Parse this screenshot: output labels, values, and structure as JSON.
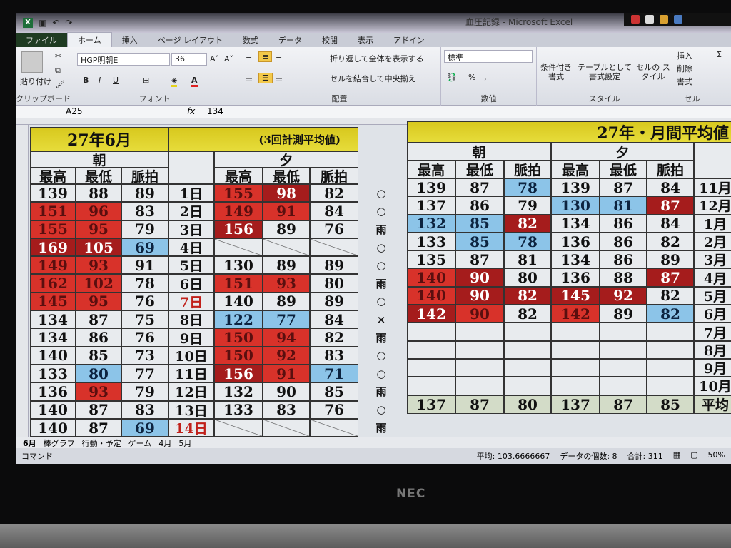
{
  "window": {
    "title": "血圧記録 - Microsoft Excel"
  },
  "ribbon": {
    "tabs": [
      "ファイル",
      "ホーム",
      "挿入",
      "ページ レイアウト",
      "数式",
      "データ",
      "校閲",
      "表示",
      "アドイン"
    ],
    "active_tab": "ホーム",
    "clipboard": {
      "paste": "貼り付け",
      "label": "クリップボード"
    },
    "font": {
      "name": "HGP明朝E",
      "size": "36",
      "label": "フォント",
      "bold": "B",
      "italic": "I",
      "underline": "U"
    },
    "alignment": {
      "wrap": "折り返して全体を表示する",
      "merge": "セルを結合して中央揃え",
      "label": "配置"
    },
    "number": {
      "format": "標準",
      "percent": "%",
      "comma": ",",
      "label": "数値"
    },
    "styles": {
      "conditional": "条件付き 書式",
      "table": "テーブルとして 書式設定",
      "cell": "セルの スタイル",
      "label": "スタイル"
    },
    "cells": {
      "insert": "挿入",
      "delete": "削除",
      "format": "書式",
      "label": "セル"
    }
  },
  "formula_bar": {
    "name_box": "A25",
    "fx": "fx",
    "value": "134"
  },
  "left_table": {
    "title": "27年6月",
    "note": "(3回計測平均値)",
    "morning": "朝",
    "evening": "夕",
    "columns": [
      "最高",
      "最低",
      "脈拍"
    ],
    "rows": [
      {
        "day": "1日",
        "m": [
          [
            "139",
            ""
          ],
          [
            "88",
            ""
          ],
          [
            "89",
            ""
          ]
        ],
        "e": [
          [
            "155",
            "r"
          ],
          [
            "98",
            "dr"
          ],
          [
            "82",
            ""
          ]
        ],
        "weather": "○"
      },
      {
        "day": "2日",
        "m": [
          [
            "151",
            "r"
          ],
          [
            "96",
            "r"
          ],
          [
            "83",
            ""
          ]
        ],
        "e": [
          [
            "149",
            "r"
          ],
          [
            "91",
            "r"
          ],
          [
            "84",
            ""
          ]
        ],
        "weather": "○"
      },
      {
        "day": "3日",
        "m": [
          [
            "155",
            "r"
          ],
          [
            "95",
            "r"
          ],
          [
            "79",
            ""
          ]
        ],
        "e": [
          [
            "156",
            "dr"
          ],
          [
            "89",
            ""
          ],
          [
            "76",
            ""
          ]
        ],
        "weather": "雨"
      },
      {
        "day": "4日",
        "m": [
          [
            "169",
            "dr"
          ],
          [
            "105",
            "dr"
          ],
          [
            "69",
            "b"
          ]
        ],
        "e": [
          [
            "",
            "diag"
          ],
          [
            "",
            "diag"
          ],
          [
            "",
            "diag"
          ]
        ],
        "weather": "○"
      },
      {
        "day": "5日",
        "m": [
          [
            "149",
            "r"
          ],
          [
            "93",
            "r"
          ],
          [
            "91",
            ""
          ]
        ],
        "e": [
          [
            "130",
            ""
          ],
          [
            "89",
            ""
          ],
          [
            "89",
            ""
          ]
        ],
        "weather": "○"
      },
      {
        "day": "6日",
        "m": [
          [
            "162",
            "r"
          ],
          [
            "102",
            "r"
          ],
          [
            "78",
            ""
          ]
        ],
        "e": [
          [
            "151",
            "r"
          ],
          [
            "93",
            "r"
          ],
          [
            "80",
            ""
          ]
        ],
        "weather": "雨"
      },
      {
        "day": "7日",
        "day_red": true,
        "m": [
          [
            "145",
            "r"
          ],
          [
            "95",
            "r"
          ],
          [
            "76",
            ""
          ]
        ],
        "e": [
          [
            "140",
            ""
          ],
          [
            "89",
            ""
          ],
          [
            "89",
            ""
          ]
        ],
        "weather": "○"
      },
      {
        "day": "8日",
        "m": [
          [
            "134",
            ""
          ],
          [
            "87",
            ""
          ],
          [
            "75",
            ""
          ]
        ],
        "e": [
          [
            "122",
            "b"
          ],
          [
            "77",
            "b"
          ],
          [
            "84",
            ""
          ]
        ],
        "weather": "×"
      },
      {
        "day": "9日",
        "m": [
          [
            "134",
            ""
          ],
          [
            "86",
            ""
          ],
          [
            "76",
            ""
          ]
        ],
        "e": [
          [
            "150",
            "r"
          ],
          [
            "94",
            "r"
          ],
          [
            "82",
            ""
          ]
        ],
        "weather": "雨"
      },
      {
        "day": "10日",
        "m": [
          [
            "140",
            ""
          ],
          [
            "85",
            ""
          ],
          [
            "73",
            ""
          ]
        ],
        "e": [
          [
            "150",
            "r"
          ],
          [
            "92",
            "r"
          ],
          [
            "83",
            ""
          ]
        ],
        "weather": "○"
      },
      {
        "day": "11日",
        "m": [
          [
            "133",
            ""
          ],
          [
            "80",
            "b"
          ],
          [
            "77",
            ""
          ]
        ],
        "e": [
          [
            "156",
            "dr"
          ],
          [
            "91",
            "r"
          ],
          [
            "71",
            "b"
          ]
        ],
        "weather": "○"
      },
      {
        "day": "12日",
        "m": [
          [
            "136",
            ""
          ],
          [
            "93",
            "r"
          ],
          [
            "79",
            ""
          ]
        ],
        "e": [
          [
            "132",
            ""
          ],
          [
            "90",
            ""
          ],
          [
            "85",
            ""
          ]
        ],
        "weather": "雨"
      },
      {
        "day": "13日",
        "m": [
          [
            "140",
            ""
          ],
          [
            "87",
            ""
          ],
          [
            "83",
            ""
          ]
        ],
        "e": [
          [
            "133",
            ""
          ],
          [
            "83",
            ""
          ],
          [
            "76",
            ""
          ]
        ],
        "weather": "○"
      },
      {
        "day": "14日",
        "day_red": true,
        "m": [
          [
            "140",
            ""
          ],
          [
            "87",
            ""
          ],
          [
            "69",
            "b"
          ]
        ],
        "e": [
          [
            "",
            "diag"
          ],
          [
            "",
            "diag"
          ],
          [
            "",
            "diag"
          ]
        ],
        "weather": "雨"
      }
    ]
  },
  "right_table": {
    "title": "27年・月間平均値",
    "morning": "朝",
    "evening": "夕",
    "columns": [
      "最高",
      "最低",
      "脈拍"
    ],
    "rows": [
      {
        "month": "11月",
        "v": [
          [
            "139",
            ""
          ],
          [
            "87",
            ""
          ],
          [
            "78",
            "b"
          ],
          [
            "139",
            ""
          ],
          [
            "87",
            ""
          ],
          [
            "84",
            ""
          ]
        ]
      },
      {
        "month": "12月",
        "v": [
          [
            "137",
            ""
          ],
          [
            "86",
            ""
          ],
          [
            "79",
            ""
          ],
          [
            "130",
            "b"
          ],
          [
            "81",
            "b"
          ],
          [
            "87",
            "dr"
          ]
        ]
      },
      {
        "month": "1月",
        "v": [
          [
            "132",
            "b"
          ],
          [
            "85",
            "b"
          ],
          [
            "82",
            "dr"
          ],
          [
            "134",
            ""
          ],
          [
            "86",
            ""
          ],
          [
            "84",
            ""
          ]
        ]
      },
      {
        "month": "2月",
        "v": [
          [
            "133",
            ""
          ],
          [
            "85",
            "b"
          ],
          [
            "78",
            "b"
          ],
          [
            "136",
            ""
          ],
          [
            "86",
            ""
          ],
          [
            "82",
            ""
          ]
        ]
      },
      {
        "month": "3月",
        "v": [
          [
            "135",
            ""
          ],
          [
            "87",
            ""
          ],
          [
            "81",
            ""
          ],
          [
            "134",
            ""
          ],
          [
            "86",
            ""
          ],
          [
            "89",
            ""
          ]
        ]
      },
      {
        "month": "4月",
        "v": [
          [
            "140",
            "r"
          ],
          [
            "90",
            "dr"
          ],
          [
            "80",
            ""
          ],
          [
            "136",
            ""
          ],
          [
            "88",
            ""
          ],
          [
            "87",
            "dr"
          ]
        ]
      },
      {
        "month": "5月",
        "v": [
          [
            "140",
            "r"
          ],
          [
            "90",
            "dr"
          ],
          [
            "82",
            "dr"
          ],
          [
            "145",
            "dr"
          ],
          [
            "92",
            "dr"
          ],
          [
            "82",
            ""
          ]
        ]
      },
      {
        "month": "6月",
        "v": [
          [
            "142",
            "dr"
          ],
          [
            "90",
            "r"
          ],
          [
            "82",
            ""
          ],
          [
            "142",
            "r"
          ],
          [
            "89",
            ""
          ],
          [
            "82",
            "b"
          ]
        ]
      },
      {
        "month": "7月",
        "v": [
          [
            "",
            ""
          ],
          [
            "",
            ""
          ],
          [
            "",
            ""
          ],
          [
            "",
            ""
          ],
          [
            "",
            ""
          ],
          [
            "",
            ""
          ]
        ]
      },
      {
        "month": "8月",
        "v": [
          [
            "",
            ""
          ],
          [
            "",
            ""
          ],
          [
            "",
            ""
          ],
          [
            "",
            ""
          ],
          [
            "",
            ""
          ],
          [
            "",
            ""
          ]
        ]
      },
      {
        "month": "9月",
        "v": [
          [
            "",
            ""
          ],
          [
            "",
            ""
          ],
          [
            "",
            ""
          ],
          [
            "",
            ""
          ],
          [
            "",
            ""
          ],
          [
            "",
            ""
          ]
        ]
      },
      {
        "month": "10月",
        "v": [
          [
            "",
            ""
          ],
          [
            "",
            ""
          ],
          [
            "",
            ""
          ],
          [
            "",
            ""
          ],
          [
            "",
            ""
          ],
          [
            "",
            ""
          ]
        ]
      }
    ],
    "average": {
      "label": "平均",
      "v": [
        "137",
        "87",
        "80",
        "137",
        "87",
        "85"
      ]
    }
  },
  "sheet_tabs": [
    "6月",
    "棒グラフ",
    "行動・予定",
    "ゲーム",
    "4月",
    "5月"
  ],
  "status": {
    "mode": "コマンド",
    "average": "平均: 103.6666667",
    "count": "データの個数: 8",
    "sum": "合計: 311",
    "zoom": "50%"
  },
  "bezel": {
    "brand": "NEC"
  },
  "colors": {
    "red": "#d8322a",
    "dark_red": "#a51c1c",
    "blue": "#8cc4e8",
    "title_yellow": "#d8c81e"
  }
}
